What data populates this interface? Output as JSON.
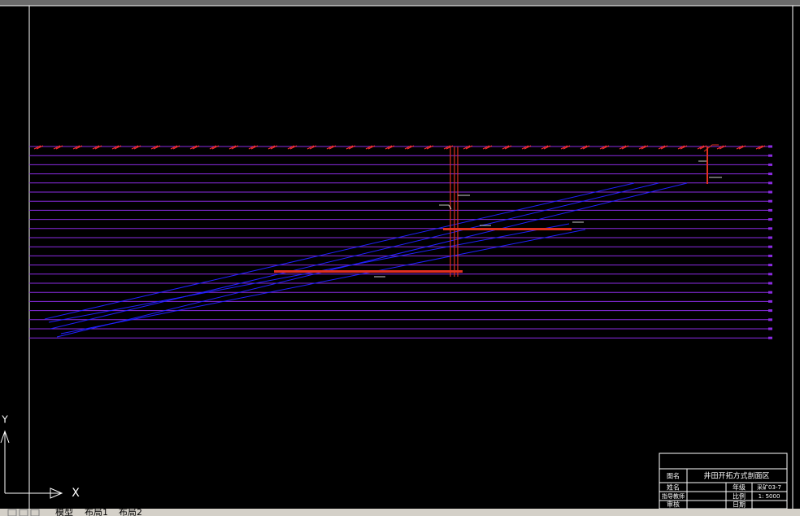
{
  "title_block": {
    "drawing_name_label": "图名",
    "drawing_name": "井田开拓方式剖面区",
    "name_label": "姓名",
    "grade_label": "年级",
    "grade": "采矿03-7",
    "advisor_label": "指导教师",
    "scale_label": "比例",
    "scale": "1: 5000",
    "review_label": "审核",
    "date_label": "日期"
  },
  "tabs": [
    "模型",
    "布局1",
    "布局2"
  ],
  "ucs": {
    "x": "X",
    "y": "Y"
  }
}
